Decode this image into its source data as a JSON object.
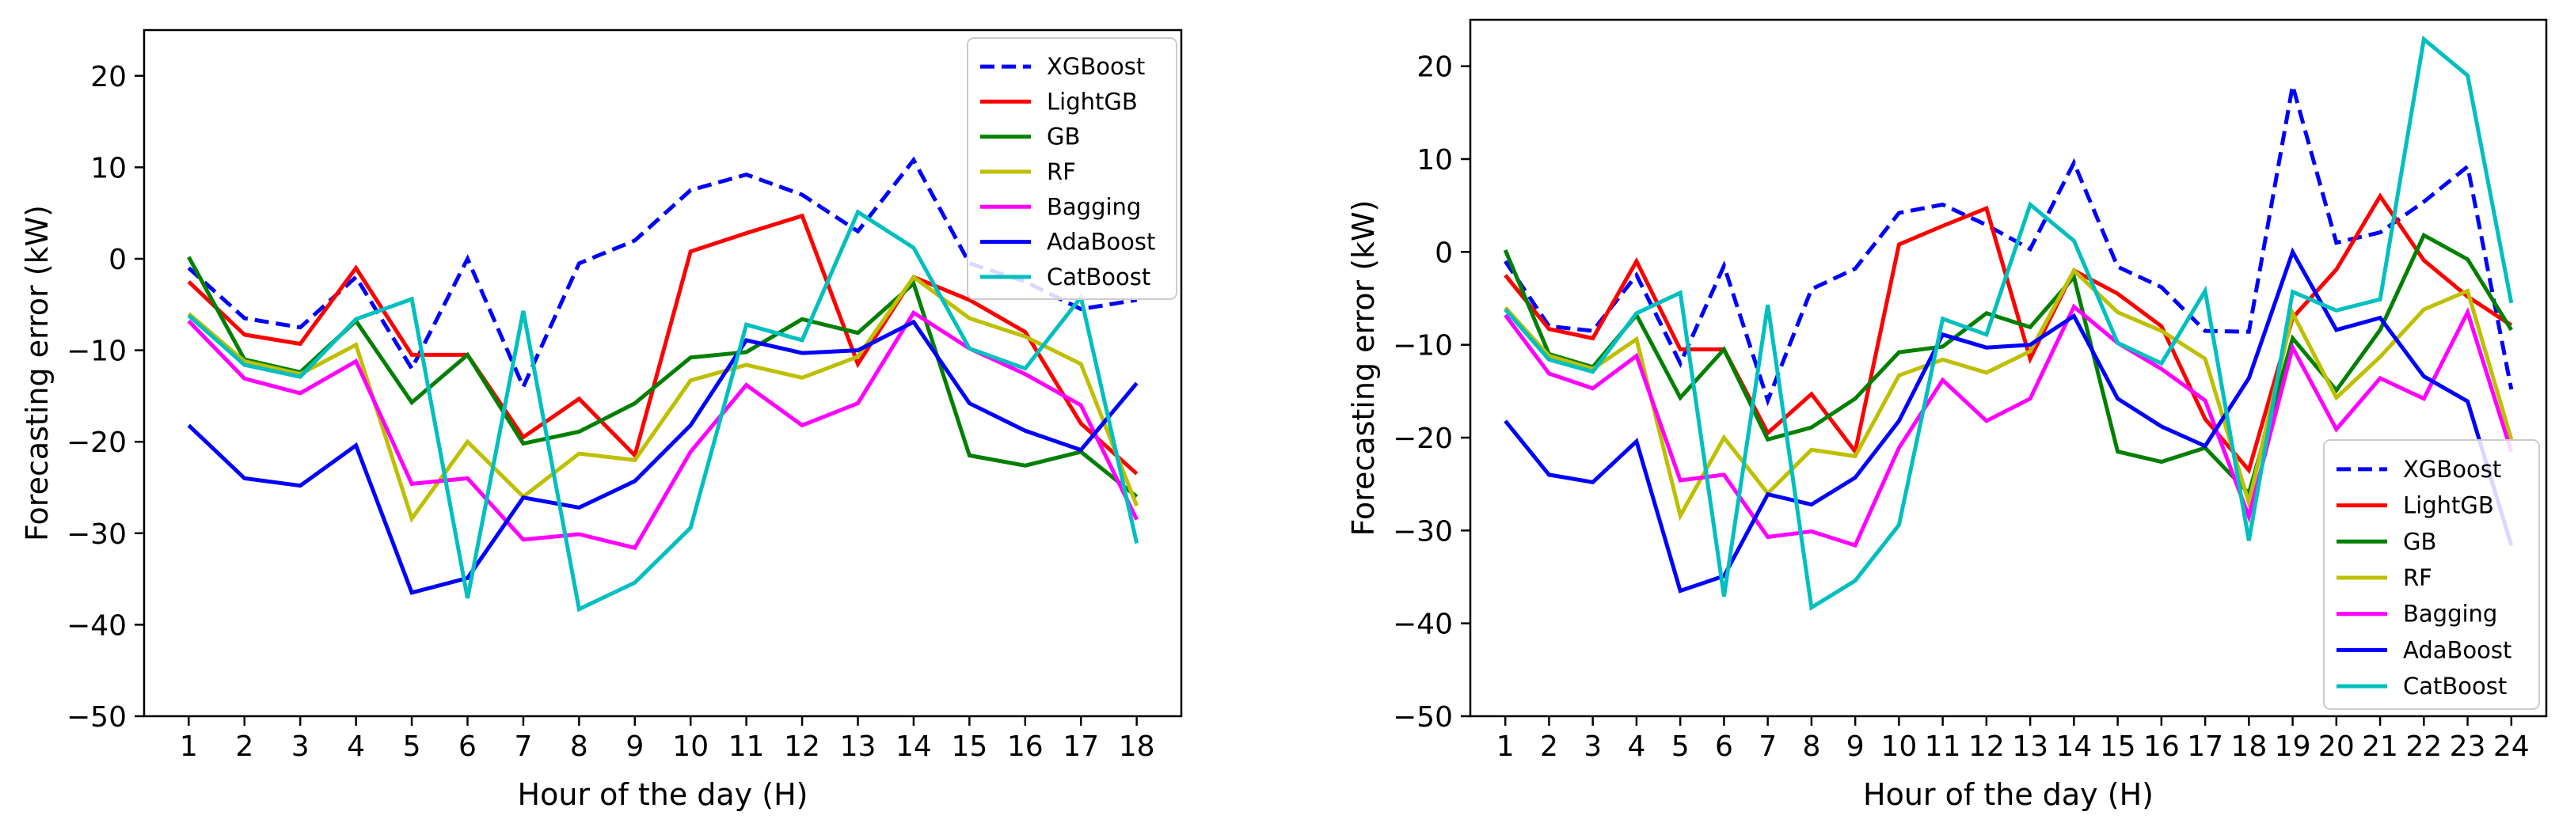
{
  "chart_data": [
    {
      "type": "line",
      "title": "",
      "xlabel": "Hour of the day (H)",
      "ylabel": "Forecasting error (kW)",
      "ylim": [
        -50,
        25
      ],
      "yticks": [
        -50,
        -40,
        -30,
        -20,
        -10,
        0,
        10,
        20
      ],
      "legend": "top-right",
      "x": [
        1,
        2,
        3,
        4,
        5,
        6,
        7,
        8,
        9,
        10,
        11,
        12,
        13,
        14,
        15,
        16,
        17,
        18
      ],
      "series": [
        {
          "name": "XGBoost",
          "color": "#0000ff",
          "dash": true,
          "values": [
            -1,
            -6.5,
            -7.5,
            -2,
            -12,
            0,
            -14,
            -0.5,
            2,
            7.5,
            9.2,
            7,
            3,
            10.8,
            -0.5,
            -2.5,
            -5.5,
            -4.5
          ]
        },
        {
          "name": "LightGB",
          "color": "#ff0000",
          "dash": false,
          "values": [
            -2.5,
            -8.3,
            -9.3,
            -1,
            -10.5,
            -10.5,
            -19.5,
            -15.3,
            -21.5,
            0.8,
            2.8,
            4.7,
            -11.5,
            -2,
            -4.5,
            -8,
            -18,
            -23.5
          ]
        },
        {
          "name": "GB",
          "color": "#008000",
          "dash": false,
          "values": [
            0.2,
            -11,
            -12.4,
            -6.8,
            -15.7,
            -10.5,
            -20.2,
            -18.9,
            -15.8,
            -10.8,
            -10.2,
            -6.6,
            -8.1,
            -2.7,
            -21.5,
            -22.6,
            -21.1,
            -26
          ]
        },
        {
          "name": "RF",
          "color": "#bfbf00",
          "dash": false,
          "values": [
            -6,
            -11.2,
            -12.6,
            -9.4,
            -28.4,
            -20,
            -26,
            -21.3,
            -22,
            -13.3,
            -11.6,
            -13,
            -10.7,
            -2,
            -6.5,
            -8.5,
            -11.5,
            -27
          ]
        },
        {
          "name": "Bagging",
          "color": "#ff00ff",
          "dash": false,
          "values": [
            -6.8,
            -13.1,
            -14.7,
            -11.2,
            -24.6,
            -24,
            -30.7,
            -30.1,
            -31.6,
            -21.1,
            -13.8,
            -18.2,
            -15.8,
            -5.9,
            -9.8,
            -12.6,
            -16,
            -28.5
          ]
        },
        {
          "name": "AdaBoost",
          "color": "#0000ff",
          "dash": false,
          "values": [
            -18.2,
            -24,
            -24.8,
            -20.4,
            -36.5,
            -34.9,
            -26.1,
            -27.2,
            -24.3,
            -18.2,
            -8.9,
            -10.3,
            -10,
            -6.9,
            -15.8,
            -18.8,
            -20.9,
            -13.6
          ]
        },
        {
          "name": "CatBoost",
          "color": "#00bfbf",
          "dash": false,
          "values": [
            -6.2,
            -11.6,
            -12.9,
            -6.6,
            -4.4,
            -37.1,
            -5.7,
            -38.3,
            -35.4,
            -29.4,
            -7.2,
            -8.9,
            5.1,
            1.2,
            -9.8,
            -12,
            -4.2,
            -31.1
          ]
        }
      ]
    },
    {
      "type": "line",
      "title": "",
      "xlabel": "Hour of the day (H)",
      "ylabel": "Forecasting error (kW)",
      "ylim": [
        -50,
        25
      ],
      "yticks": [
        -50,
        -40,
        -30,
        -20,
        -10,
        0,
        10,
        20
      ],
      "legend": "bottom-right",
      "x": [
        1,
        2,
        3,
        4,
        5,
        6,
        7,
        8,
        9,
        10,
        11,
        12,
        13,
        14,
        15,
        16,
        17,
        18,
        19,
        20,
        21,
        22,
        23,
        24
      ],
      "series": [
        {
          "name": "XGBoost",
          "color": "#0000ff",
          "dash": true,
          "values": [
            -1,
            -8,
            -8.5,
            -2.5,
            -12,
            -1.5,
            -16,
            -4,
            -1.8,
            4.2,
            5.1,
            2.9,
            0.3,
            9.6,
            -1.6,
            -3.8,
            -8.5,
            -8.6,
            17.9,
            1,
            2.1,
            5.4,
            9.2,
            -14.8
          ]
        },
        {
          "name": "LightGB",
          "color": "#ff0000",
          "dash": false,
          "values": [
            -2.5,
            -8.3,
            -9.3,
            -1,
            -10.5,
            -10.5,
            -19.5,
            -15.3,
            -21.5,
            0.8,
            2.8,
            4.7,
            -11.5,
            -2,
            -4.5,
            -8,
            -18,
            -23.5,
            -7.1,
            -1.9,
            6,
            -0.9,
            -4.8,
            -7.9
          ]
        },
        {
          "name": "GB",
          "color": "#008000",
          "dash": false,
          "values": [
            0.2,
            -11,
            -12.4,
            -6.8,
            -15.7,
            -10.5,
            -20.2,
            -18.9,
            -15.8,
            -10.8,
            -10.2,
            -6.6,
            -8.1,
            -2.7,
            -21.5,
            -22.6,
            -21.1,
            -26,
            -9.3,
            -14.9,
            -8.4,
            1.8,
            -0.8,
            -8.4
          ]
        },
        {
          "name": "RF",
          "color": "#bfbf00",
          "dash": false,
          "values": [
            -6,
            -11.2,
            -12.6,
            -9.4,
            -28.4,
            -20,
            -26,
            -21.3,
            -22,
            -13.3,
            -11.6,
            -13,
            -10.7,
            -2,
            -6.5,
            -8.5,
            -11.5,
            -27,
            -6.6,
            -15.7,
            -11.3,
            -6.2,
            -4.2,
            -20.2
          ]
        },
        {
          "name": "Bagging",
          "color": "#ff00ff",
          "dash": false,
          "values": [
            -6.8,
            -13.1,
            -14.7,
            -11.2,
            -24.6,
            -24,
            -30.7,
            -30.1,
            -31.6,
            -21.1,
            -13.8,
            -18.2,
            -15.8,
            -5.9,
            -9.8,
            -12.6,
            -16,
            -28.5,
            -10.3,
            -19.1,
            -13.6,
            -15.8,
            -6.5,
            -21.5
          ]
        },
        {
          "name": "AdaBoost",
          "color": "#0000ff",
          "dash": false,
          "values": [
            -18.2,
            -24,
            -24.8,
            -20.4,
            -36.5,
            -34.9,
            -26.1,
            -27.2,
            -24.3,
            -18.2,
            -8.9,
            -10.3,
            -10,
            -6.9,
            -15.8,
            -18.8,
            -20.9,
            -13.6,
            0,
            -8.4,
            -7.1,
            -13.4,
            -16.1,
            -31.6
          ]
        },
        {
          "name": "CatBoost",
          "color": "#00bfbf",
          "dash": false,
          "values": [
            -6.2,
            -11.6,
            -12.9,
            -6.6,
            -4.4,
            -37.1,
            -5.7,
            -38.3,
            -35.4,
            -29.4,
            -7.2,
            -8.9,
            5.1,
            1.2,
            -9.8,
            -12,
            -4.2,
            -31.1,
            -4.3,
            -6.3,
            -5.1,
            22.9,
            19,
            -5.5
          ]
        }
      ]
    }
  ]
}
